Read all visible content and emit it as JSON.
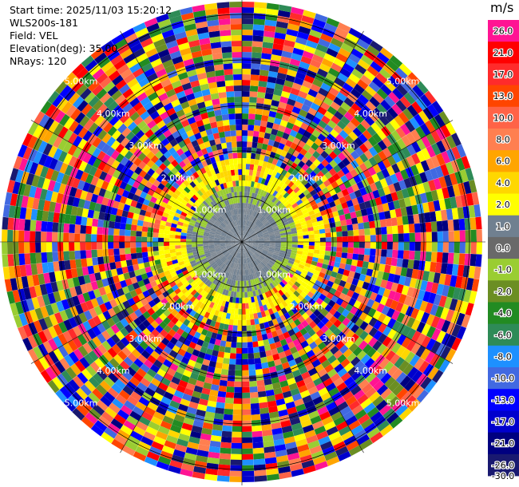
{
  "info": {
    "start_time": "Start time: 2025/11/03 15:20:12",
    "station": "WLS200s-181",
    "field": "Field: VEL",
    "elevation": "Elevation(deg): 35.00",
    "nrays": "NRays: 120"
  },
  "chart_data": {
    "type": "heatmap",
    "projection": "polar (PPI)",
    "field": "VEL",
    "n_rays": 120,
    "elevation_deg": 35.0,
    "range_rings": [
      {
        "label": "1.00km",
        "km": 1
      },
      {
        "label": "2.00km",
        "km": 2
      },
      {
        "label": "3.00km",
        "km": 3
      },
      {
        "label": "4.00km",
        "km": 4
      },
      {
        "label": "5.00km",
        "km": 5
      }
    ],
    "colorbar": {
      "unit": "m/s",
      "ticks": [
        "26.0",
        "21.0",
        "17.0",
        "13.0",
        "10.0",
        "8.0",
        "6.0",
        "4.0",
        "2.0",
        "1.0",
        "0.0",
        "-1.0",
        "-2.0",
        "-4.0",
        "-6.0",
        "-8.0",
        "-10.0",
        "-13.0",
        "-17.0",
        "-21.0",
        "-26.0",
        "-30.0"
      ],
      "colors": [
        "#ff1493",
        "#ff0000",
        "#ff2b2b",
        "#ff4500",
        "#ff6347",
        "#ff7f50",
        "#ffa500",
        "#ffd700",
        "#ffff00",
        "#708090",
        "#696969",
        "#9acd32",
        "#6b8e23",
        "#228b22",
        "#2e8b57",
        "#1e90ff",
        "#4169e1",
        "#0000ff",
        "#0000cd",
        "#000080",
        "#191970"
      ]
    }
  }
}
